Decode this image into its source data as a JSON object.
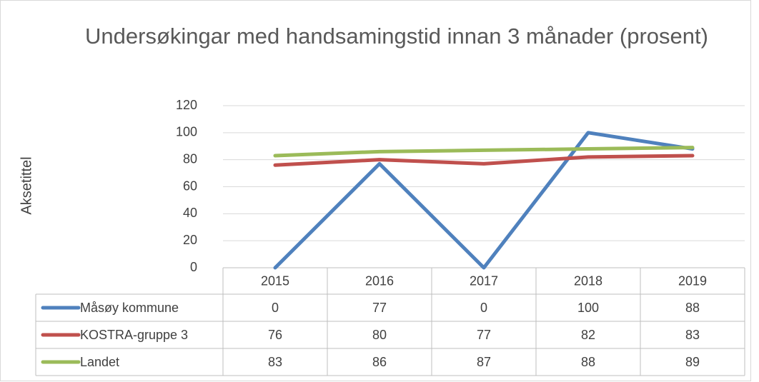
{
  "chart_data": {
    "type": "line",
    "title": "Undersøkingar med handsamingstid innan 3 månader (prosent)",
    "y_label": "Aksetittel",
    "categories": [
      "2015",
      "2016",
      "2017",
      "2018",
      "2019"
    ],
    "series": [
      {
        "name": "Måsøy kommune",
        "color": "#4f81bd",
        "values": [
          0,
          77,
          0,
          100,
          88
        ]
      },
      {
        "name": "KOSTRA-gruppe 3",
        "color": "#c0504d",
        "values": [
          76,
          80,
          77,
          82,
          83
        ]
      },
      {
        "name": "Landet",
        "color": "#9bbb59",
        "values": [
          83,
          86,
          87,
          88,
          89
        ]
      }
    ],
    "ylim": [
      0,
      120
    ],
    "yticks": [
      0,
      20,
      40,
      60,
      80,
      100,
      120
    ],
    "grid": true,
    "data_table": true
  }
}
